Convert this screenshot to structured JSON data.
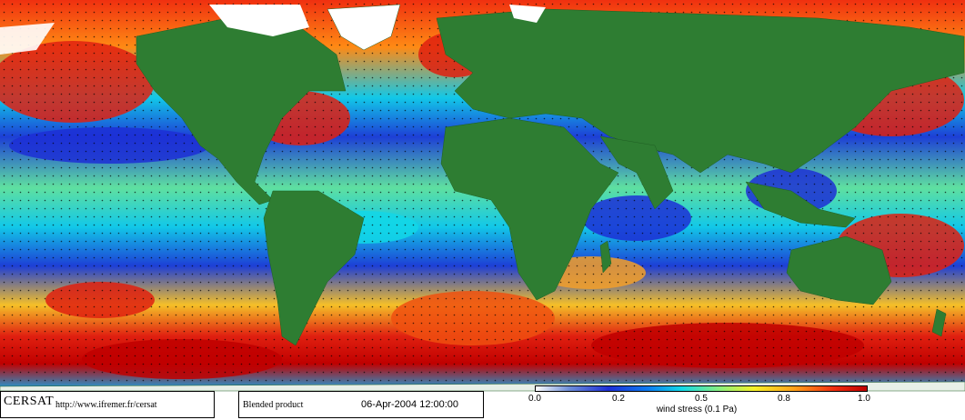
{
  "branding": {
    "logo_text": "CERSAT",
    "url": "http://www.ifremer.fr/cersat"
  },
  "product": {
    "label": "Blended product",
    "datetime": "06-Apr-2004 12:00:00"
  },
  "colorbar": {
    "ticks": [
      "0.0",
      "0.2",
      "0.5",
      "0.8",
      "1.0"
    ],
    "label": "wind stress (0.1 Pa)"
  },
  "colors": {
    "land": "#2e7d32",
    "ice": "#ffffff",
    "low": "#1d2fd6",
    "mid": "#12d8e8",
    "high": "#f03010"
  }
}
